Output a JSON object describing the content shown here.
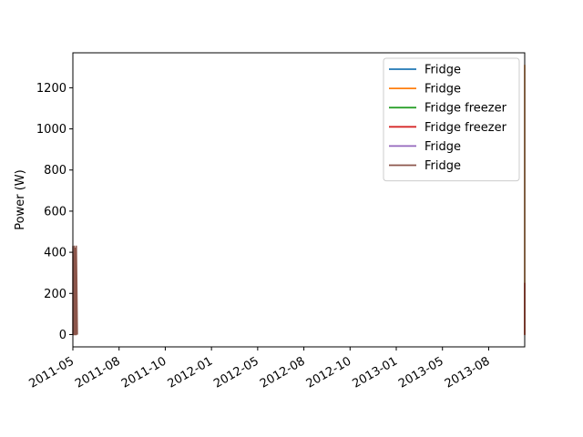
{
  "chart_data": {
    "type": "line",
    "title": "",
    "xlabel": "",
    "ylabel": "Power (W)",
    "x_tick_labels": [
      "2011-05",
      "2011-08",
      "2011-10",
      "2012-01",
      "2012-05",
      "2012-08",
      "2012-10",
      "2013-01",
      "2013-05",
      "2013-08"
    ],
    "ylim": [
      -60,
      1370
    ],
    "y_ticks": [
      0,
      200,
      400,
      600,
      800,
      1000,
      1200
    ],
    "legend_position": "top-right",
    "grid": false,
    "series": [
      {
        "name": "Fridge",
        "color": "#1f77b4",
        "points": []
      },
      {
        "name": "Fridge",
        "color": "#ff7f0e",
        "points": [
          [
            "2013-10-12",
            0
          ],
          [
            "2013-10-12",
            1310
          ],
          [
            "2013-10-12",
            250
          ],
          [
            "2013-10-12",
            0
          ],
          [
            "2013-10-12",
            1300
          ],
          [
            "2013-10-12",
            240
          ]
        ]
      },
      {
        "name": "Fridge freezer",
        "color": "#2ca02c",
        "points": [
          [
            "2011-04-22",
            0
          ],
          [
            "2011-04-22",
            180
          ],
          [
            "2011-04-22",
            0
          ]
        ]
      },
      {
        "name": "Fridge freezer",
        "color": "#d62728",
        "points": [
          [
            "2013-10-12",
            0
          ],
          [
            "2013-10-12",
            250
          ],
          [
            "2013-10-12",
            0
          ],
          [
            "2013-10-12",
            240
          ],
          [
            "2013-10-12",
            0
          ]
        ]
      },
      {
        "name": "Fridge",
        "color": "#9467bd",
        "points": [
          [
            "2011-04-20",
            0
          ],
          [
            "2011-04-20",
            190
          ],
          [
            "2011-04-21",
            0
          ]
        ]
      },
      {
        "name": "Fridge",
        "color": "#8c564b",
        "points": [
          [
            "2011-04-18",
            0
          ],
          [
            "2011-04-18",
            430
          ],
          [
            "2011-04-19",
            230
          ],
          [
            "2011-04-19",
            0
          ],
          [
            "2011-04-21",
            0
          ],
          [
            "2011-04-21",
            430
          ],
          [
            "2011-04-22",
            230
          ],
          [
            "2011-04-22",
            0
          ],
          [
            "2011-04-23",
            0
          ],
          [
            "2011-04-23",
            420
          ],
          [
            "2011-04-24",
            230
          ],
          [
            "2011-04-24",
            0
          ],
          [
            "2011-04-25",
            0
          ],
          [
            "2011-04-25",
            430
          ],
          [
            "2011-04-26",
            230
          ],
          [
            "2011-04-27",
            0
          ]
        ]
      }
    ]
  }
}
